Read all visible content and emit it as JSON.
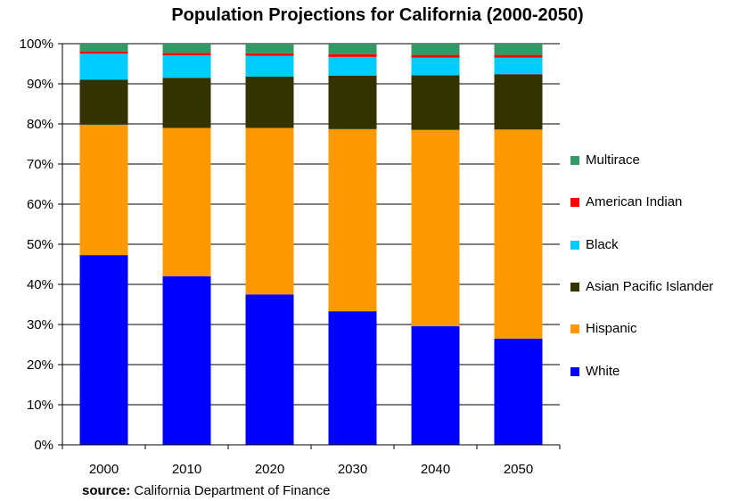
{
  "chart_data": {
    "type": "bar",
    "stacked": true,
    "title": "Population Projections for California (2000-2050)",
    "categories": [
      "2000",
      "2010",
      "2020",
      "2030",
      "2040",
      "2050"
    ],
    "ylim": [
      0,
      100
    ],
    "yticks": [
      "0%",
      "10%",
      "20%",
      "30%",
      "40%",
      "50%",
      "60%",
      "70%",
      "80%",
      "90%",
      "100%"
    ],
    "grid": true,
    "legend_position": "right",
    "series": [
      {
        "name": "White",
        "color": "#0000ff",
        "values": [
          47.3,
          42.0,
          37.5,
          33.3,
          29.6,
          26.5
        ]
      },
      {
        "name": "Hispanic",
        "color": "#ff9900",
        "values": [
          32.5,
          37.0,
          41.5,
          45.4,
          48.9,
          52.1
        ]
      },
      {
        "name": "Asian Pacific Islander",
        "color": "#333300",
        "values": [
          11.2,
          12.5,
          12.8,
          13.3,
          13.6,
          13.8
        ]
      },
      {
        "name": "Black",
        "color": "#00ccff",
        "values": [
          6.5,
          5.6,
          5.2,
          4.7,
          4.4,
          4.1
        ]
      },
      {
        "name": "American Indian",
        "color": "#ff0000",
        "values": [
          0.5,
          0.6,
          0.6,
          0.7,
          0.7,
          0.7
        ]
      },
      {
        "name": "Multirace",
        "color": "#339966",
        "values": [
          2.0,
          2.3,
          2.4,
          2.6,
          2.8,
          2.8
        ]
      }
    ],
    "legend_order": [
      "Multirace",
      "American Indian",
      "Black",
      "Asian Pacific Islander",
      "Hispanic",
      "White"
    ]
  },
  "source": {
    "label": "source:",
    "text": "California Department of Finance"
  }
}
